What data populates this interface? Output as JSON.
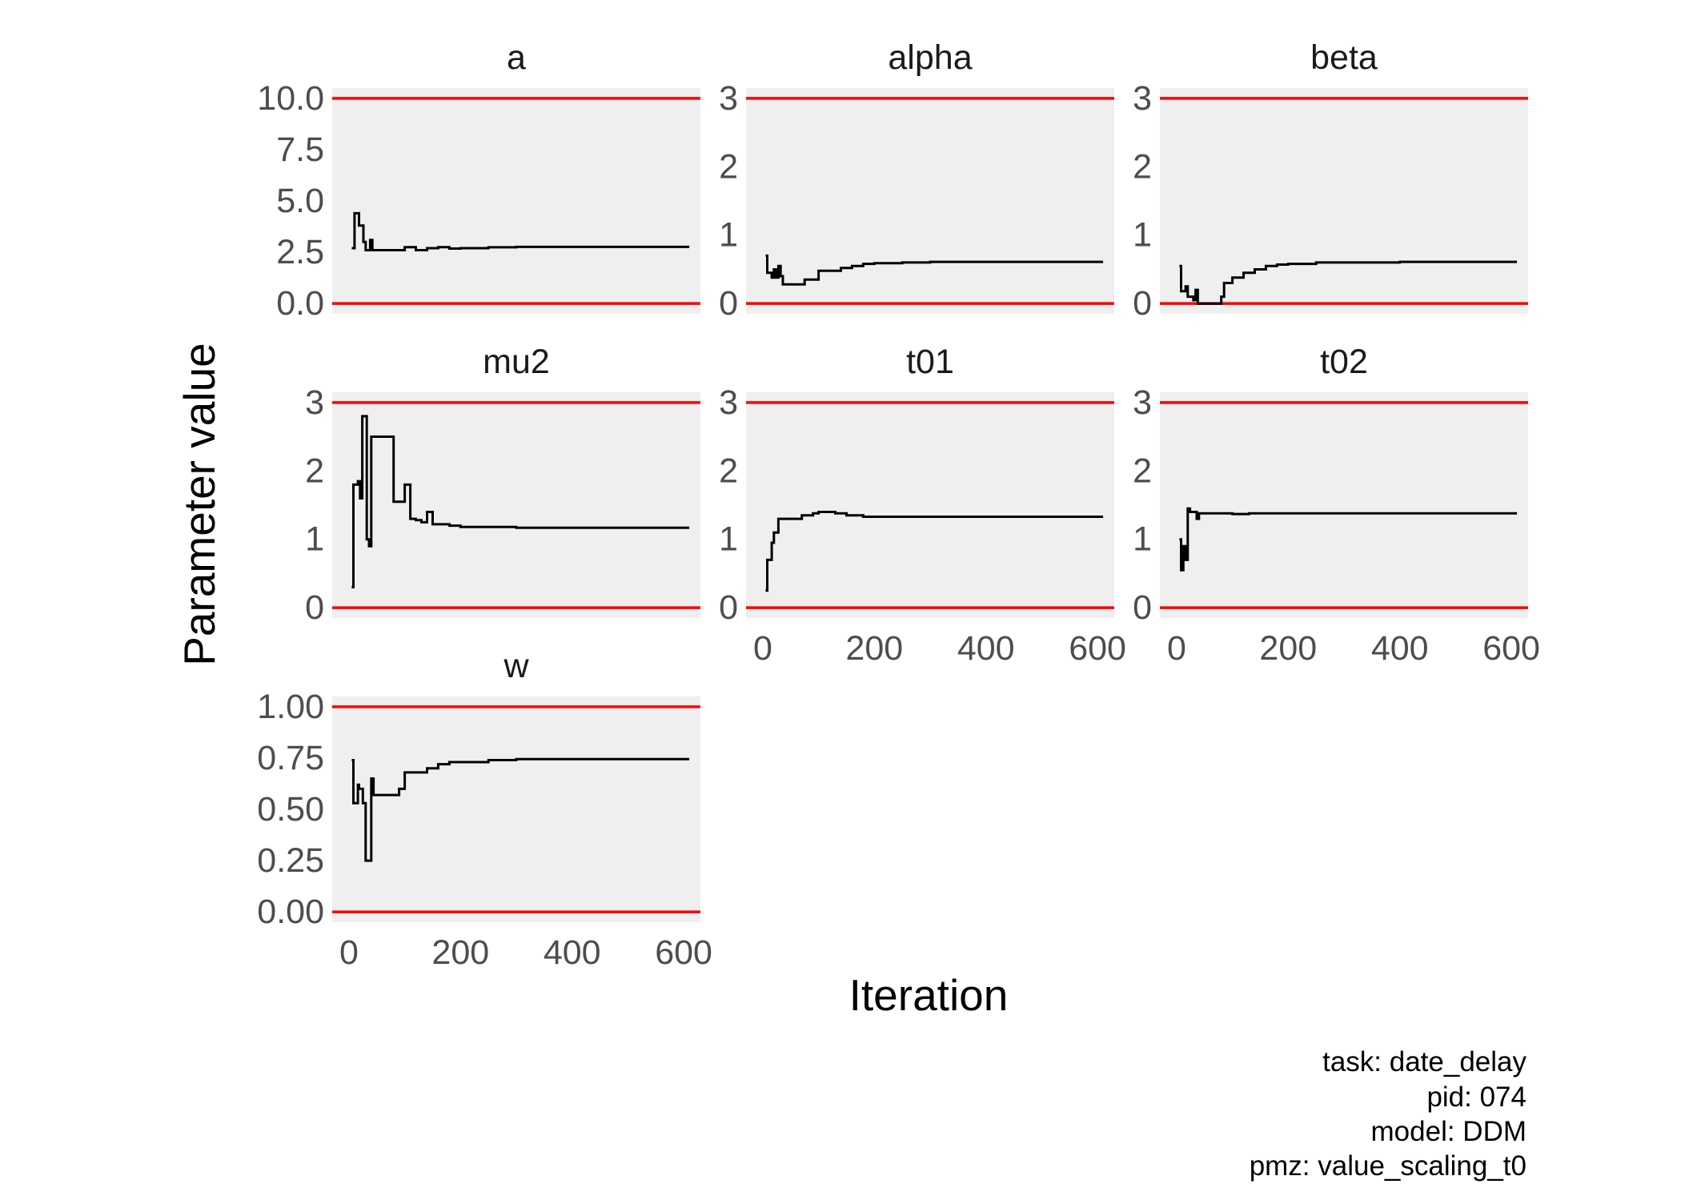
{
  "chart_data": {
    "type": "line",
    "xlabel": "Iteration",
    "ylabel": "Parameter value",
    "caption_lines": [
      "task: date_delay",
      "pid: 074",
      "model: DDM",
      "pmz: value_scaling_t0"
    ],
    "colors": {
      "panel_bg": "#efefef",
      "trace": "#000000",
      "bound": "#ff0000",
      "tick_text": "#4d4d4d"
    },
    "xlim": [
      -30,
      630
    ],
    "xticks": [
      "0",
      "200",
      "400",
      "600"
    ],
    "panels": [
      {
        "title": "a",
        "ylim": [
          -0.5,
          10.5
        ],
        "yticks": [
          "0.0",
          "2.5",
          "5.0",
          "7.5",
          "10.0"
        ],
        "bounds": [
          0,
          10
        ],
        "show_x_ticks": false,
        "x": [
          5,
          10,
          15,
          18,
          22,
          26,
          30,
          34,
          38,
          42,
          46,
          50,
          60,
          80,
          100,
          120,
          140,
          160,
          180,
          200,
          250,
          300,
          400,
          500,
          610
        ],
        "y": [
          2.7,
          4.4,
          4.4,
          3.8,
          3.8,
          3.0,
          2.6,
          2.6,
          3.1,
          2.6,
          2.6,
          2.6,
          2.6,
          2.6,
          2.75,
          2.6,
          2.7,
          2.75,
          2.68,
          2.7,
          2.74,
          2.76,
          2.76,
          2.76,
          2.76
        ]
      },
      {
        "title": "alpha",
        "ylim": [
          -0.15,
          3.15
        ],
        "yticks": [
          "0",
          "1",
          "2",
          "3"
        ],
        "bounds": [
          0,
          3
        ],
        "show_x_ticks": false,
        "x": [
          5,
          8,
          12,
          16,
          20,
          24,
          28,
          32,
          36,
          40,
          44,
          75,
          100,
          140,
          160,
          180,
          200,
          250,
          300,
          400,
          500,
          610
        ],
        "y": [
          0.7,
          0.45,
          0.45,
          0.38,
          0.5,
          0.38,
          0.55,
          0.4,
          0.28,
          0.28,
          0.28,
          0.35,
          0.48,
          0.52,
          0.55,
          0.58,
          0.59,
          0.6,
          0.61,
          0.61,
          0.61,
          0.61
        ]
      },
      {
        "title": "beta",
        "ylim": [
          -0.15,
          3.15
        ],
        "yticks": [
          "0",
          "1",
          "2",
          "3"
        ],
        "bounds": [
          0,
          3
        ],
        "show_x_ticks": false,
        "x": [
          5,
          8,
          12,
          16,
          20,
          24,
          30,
          34,
          38,
          42,
          70,
          80,
          85,
          90,
          100,
          120,
          140,
          160,
          180,
          200,
          250,
          300,
          400,
          500,
          610
        ],
        "y": [
          0.55,
          0.18,
          0.18,
          0.25,
          0.1,
          0.1,
          0.05,
          0.2,
          0.0,
          0.0,
          0.0,
          0.1,
          0.3,
          0.3,
          0.38,
          0.45,
          0.5,
          0.55,
          0.57,
          0.58,
          0.6,
          0.6,
          0.61,
          0.61,
          0.61
        ]
      },
      {
        "title": "mu2",
        "ylim": [
          -0.15,
          3.15
        ],
        "yticks": [
          "0",
          "1",
          "2",
          "3"
        ],
        "bounds": [
          0,
          3
        ],
        "show_x_ticks": false,
        "x": [
          5,
          8,
          16,
          20,
          24,
          28,
          32,
          36,
          40,
          44,
          78,
          80,
          90,
          100,
          110,
          120,
          130,
          140,
          150,
          160,
          180,
          200,
          250,
          300,
          400,
          500,
          610
        ],
        "y": [
          0.3,
          1.8,
          1.85,
          1.6,
          2.8,
          2.8,
          1.0,
          0.9,
          2.5,
          2.5,
          2.5,
          1.55,
          1.55,
          1.8,
          1.3,
          1.28,
          1.25,
          1.4,
          1.22,
          1.22,
          1.2,
          1.18,
          1.18,
          1.17,
          1.17,
          1.17,
          1.17
        ]
      },
      {
        "title": "t01",
        "ylim": [
          -0.15,
          3.15
        ],
        "yticks": [
          "0",
          "1",
          "2",
          "3"
        ],
        "bounds": [
          0,
          3
        ],
        "show_x_ticks": true,
        "x": [
          5,
          8,
          16,
          20,
          24,
          28,
          32,
          40,
          70,
          90,
          100,
          130,
          150,
          180,
          200,
          250,
          300,
          400,
          500,
          610
        ],
        "y": [
          0.25,
          0.7,
          0.95,
          1.1,
          1.1,
          1.3,
          1.3,
          1.3,
          1.35,
          1.38,
          1.4,
          1.38,
          1.35,
          1.33,
          1.33,
          1.33,
          1.33,
          1.33,
          1.33,
          1.33
        ]
      },
      {
        "title": "t02",
        "ylim": [
          -0.15,
          3.15
        ],
        "yticks": [
          "0",
          "1",
          "2",
          "3"
        ],
        "bounds": [
          0,
          3
        ],
        "show_x_ticks": true,
        "x": [
          5,
          8,
          12,
          16,
          20,
          24,
          30,
          36,
          40,
          60,
          100,
          130,
          160,
          180,
          200,
          250,
          300,
          400,
          500,
          610
        ],
        "y": [
          1.0,
          0.55,
          0.9,
          0.7,
          1.45,
          1.4,
          1.4,
          1.3,
          1.38,
          1.38,
          1.37,
          1.38,
          1.38,
          1.38,
          1.38,
          1.38,
          1.38,
          1.38,
          1.38,
          1.38
        ]
      },
      {
        "title": "w",
        "ylim": [
          -0.05,
          1.05
        ],
        "yticks": [
          "0.00",
          "0.25",
          "0.50",
          "0.75",
          "1.00"
        ],
        "bounds": [
          0,
          1
        ],
        "show_x_ticks": true,
        "x": [
          5,
          8,
          16,
          18,
          20,
          25,
          30,
          35,
          40,
          44,
          80,
          90,
          100,
          120,
          140,
          160,
          180,
          200,
          250,
          300,
          400,
          500,
          610
        ],
        "y": [
          0.74,
          0.53,
          0.62,
          0.6,
          0.6,
          0.53,
          0.25,
          0.25,
          0.65,
          0.57,
          0.57,
          0.6,
          0.68,
          0.68,
          0.7,
          0.72,
          0.73,
          0.73,
          0.74,
          0.745,
          0.745,
          0.745,
          0.745
        ]
      }
    ]
  }
}
